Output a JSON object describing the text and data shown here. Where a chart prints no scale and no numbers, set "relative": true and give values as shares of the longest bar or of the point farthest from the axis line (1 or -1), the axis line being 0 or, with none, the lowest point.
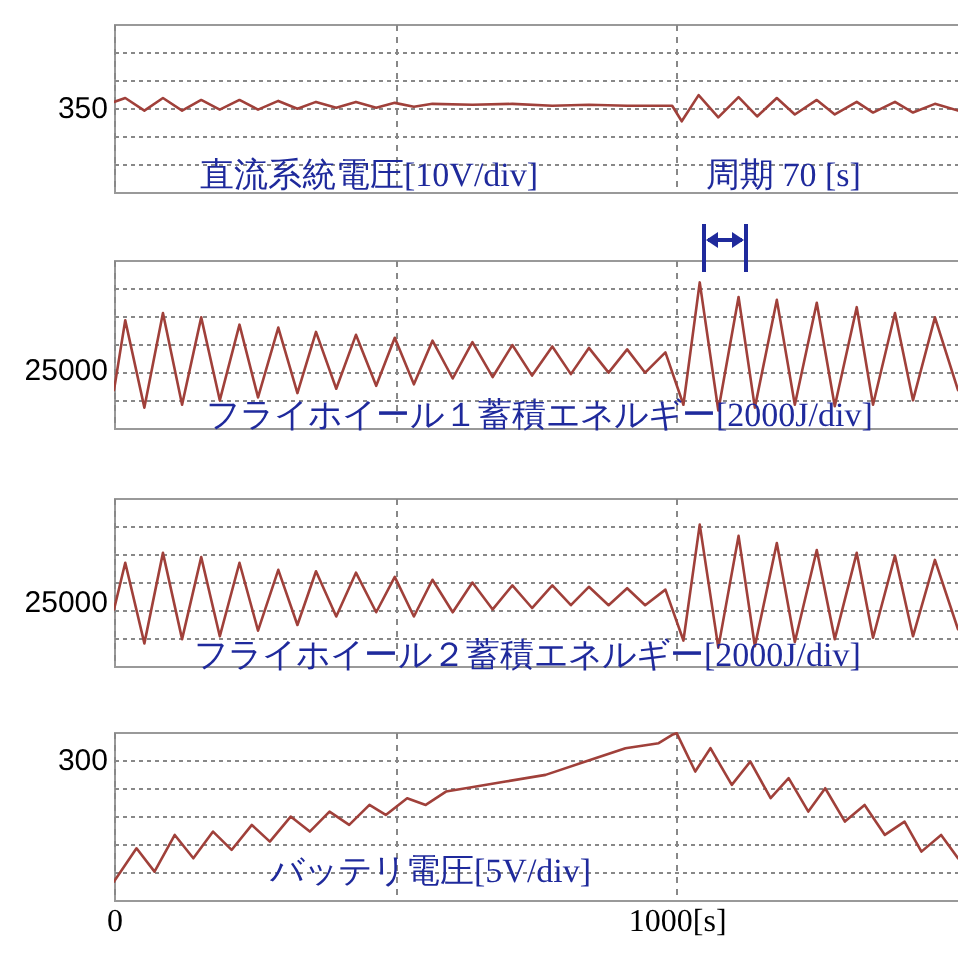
{
  "chart_data": [
    {
      "type": "line",
      "relative": true,
      "annotations": [
        "350",
        "直流系統電圧[10V/div]",
        "周期 70 [s]"
      ],
      "xlim": [
        0,
        1500
      ],
      "grid": true,
      "tick_labels": false,
      "x": [
        0,
        20,
        54,
        87,
        121,
        155,
        188,
        223,
        256,
        292,
        326,
        359,
        395,
        430,
        466,
        499,
        533,
        566,
        637,
        708,
        779,
        844,
        912,
        992,
        1009,
        1039,
        1074,
        1110,
        1143,
        1178,
        1210,
        1249,
        1281,
        1320,
        1349,
        1388,
        1420,
        1459,
        1500
      ],
      "series": [
        {
          "color": "#a0403a",
          "values": [
            0.93,
            0.97,
            0.84,
            0.97,
            0.84,
            0.95,
            0.85,
            0.95,
            0.85,
            0.94,
            0.86,
            0.93,
            0.87,
            0.93,
            0.87,
            0.92,
            0.88,
            0.91,
            0.9,
            0.91,
            0.89,
            0.9,
            0.89,
            0.89,
            0.73,
            1,
            0.77,
            0.98,
            0.78,
            0.97,
            0.8,
            0.95,
            0.8,
            0.93,
            0.82,
            0.93,
            0.82,
            0.91,
            0.84
          ]
        }
      ]
    },
    {
      "type": "line",
      "relative": true,
      "annotations": [
        "25000",
        "フライホイール１蓄積エネルギー[2000J/div]"
      ],
      "xlim": [
        0,
        1500
      ],
      "grid": true,
      "tick_labels": false,
      "x": [
        0,
        20,
        54,
        87,
        121,
        155,
        188,
        223,
        256,
        292,
        326,
        359,
        395,
        430,
        466,
        499,
        533,
        566,
        602,
        637,
        673,
        708,
        743,
        779,
        812,
        844,
        879,
        912,
        944,
        980,
        1012,
        1041,
        1074,
        1110,
        1139,
        1178,
        1210,
        1249,
        1281,
        1320,
        1349,
        1388,
        1420,
        1459,
        1500
      ],
      "series": [
        {
          "color": "#a0403a",
          "values": [
            0.26,
            0.74,
            0.14,
            0.79,
            0.16,
            0.76,
            0.19,
            0.71,
            0.21,
            0.69,
            0.24,
            0.66,
            0.27,
            0.64,
            0.29,
            0.62,
            0.3,
            0.6,
            0.34,
            0.59,
            0.35,
            0.57,
            0.36,
            0.56,
            0.37,
            0.55,
            0.38,
            0.54,
            0.38,
            0.52,
            0.16,
            1,
            0.12,
            0.9,
            0.14,
            0.88,
            0.16,
            0.86,
            0.15,
            0.83,
            0.16,
            0.79,
            0.19,
            0.76,
            0.26
          ]
        }
      ]
    },
    {
      "type": "line",
      "relative": true,
      "annotations": [
        "25000",
        "フライホイール２蓄積エネルギー[2000J/div]"
      ],
      "xlim": [
        0,
        1500
      ],
      "grid": true,
      "tick_labels": false,
      "x": [
        0,
        20,
        54,
        87,
        121,
        155,
        188,
        223,
        256,
        292,
        326,
        359,
        395,
        430,
        466,
        499,
        533,
        566,
        602,
        637,
        673,
        708,
        743,
        779,
        812,
        844,
        879,
        912,
        944,
        980,
        1012,
        1041,
        1074,
        1110,
        1139,
        1178,
        1210,
        1249,
        1281,
        1320,
        1349,
        1388,
        1420,
        1459,
        1500
      ],
      "series": [
        {
          "color": "#a0403a",
          "values": [
            0.4,
            0.73,
            0.16,
            0.8,
            0.19,
            0.77,
            0.21,
            0.73,
            0.25,
            0.68,
            0.29,
            0.67,
            0.35,
            0.66,
            0.38,
            0.63,
            0.35,
            0.61,
            0.38,
            0.59,
            0.4,
            0.57,
            0.41,
            0.57,
            0.43,
            0.56,
            0.43,
            0.55,
            0.43,
            0.54,
            0.18,
            1,
            0.13,
            0.92,
            0.14,
            0.87,
            0.17,
            0.82,
            0.19,
            0.8,
            0.2,
            0.78,
            0.21,
            0.75,
            0.26
          ]
        }
      ]
    },
    {
      "type": "line",
      "relative": true,
      "annotations": [
        "300",
        "バッテリ電圧[5V/div]"
      ],
      "xlim": [
        0,
        1500
      ],
      "xticks": [
        0,
        {
          "value": 500,
          "label": null
        },
        {
          "value": 1000,
          "label": "1000[s]"
        }
      ],
      "grid": true,
      "tick_labels": "x",
      "x": [
        0,
        40,
        72,
        108,
        141,
        176,
        209,
        245,
        277,
        314,
        348,
        383,
        418,
        454,
        483,
        521,
        554,
        590,
        625,
        696,
        767,
        838,
        909,
        968,
        992,
        1000,
        1033,
        1060,
        1098,
        1131,
        1167,
        1199,
        1234,
        1264,
        1299,
        1334,
        1370,
        1405,
        1435,
        1470,
        1500
      ],
      "series": [
        {
          "color": "#a0403a",
          "values": [
            0.11,
            0.31,
            0.17,
            0.39,
            0.25,
            0.41,
            0.3,
            0.45,
            0.35,
            0.5,
            0.41,
            0.53,
            0.45,
            0.57,
            0.51,
            0.61,
            0.57,
            0.65,
            0.67,
            0.71,
            0.75,
            0.83,
            0.91,
            0.94,
            0.99,
            1,
            0.77,
            0.91,
            0.69,
            0.83,
            0.61,
            0.73,
            0.53,
            0.67,
            0.47,
            0.57,
            0.39,
            0.47,
            0.29,
            0.39,
            0.25
          ]
        }
      ]
    }
  ]
}
